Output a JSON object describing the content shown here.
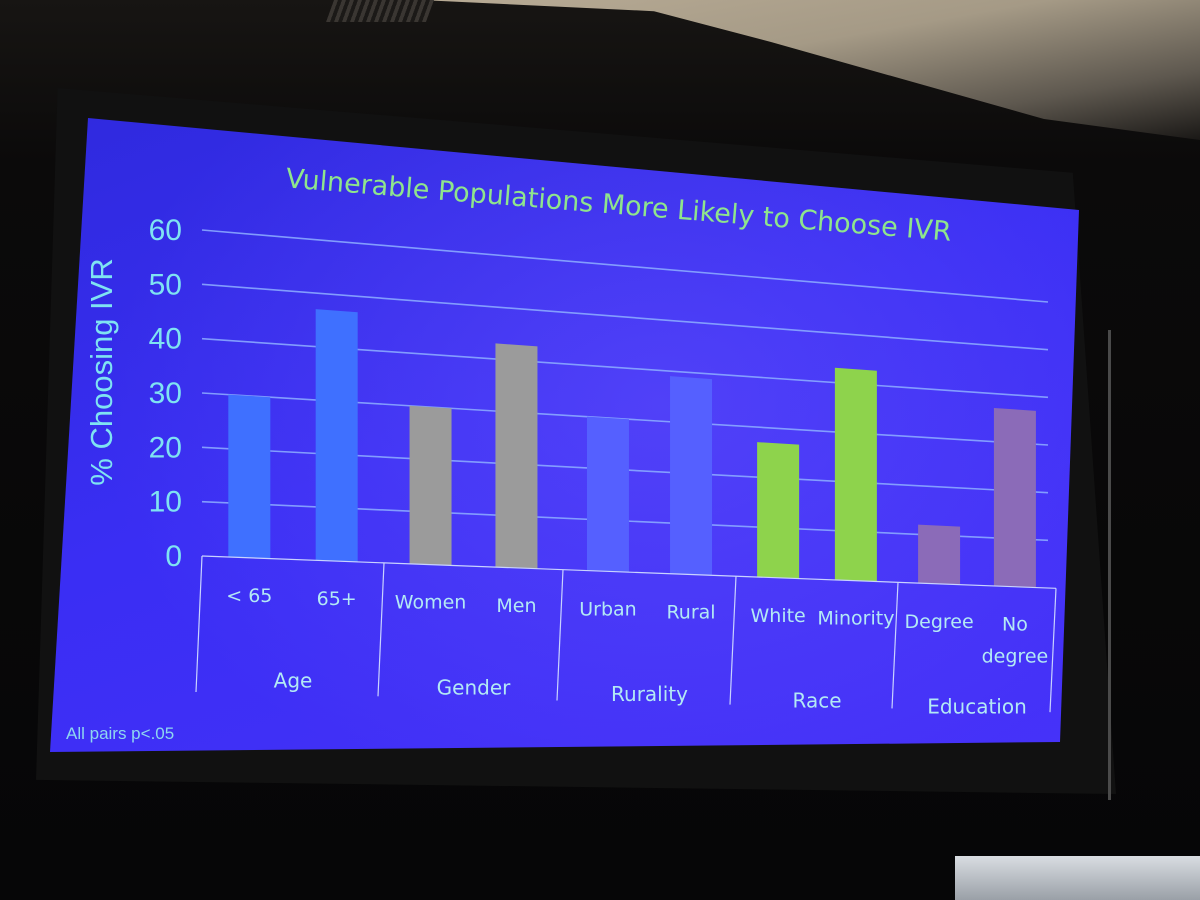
{
  "chart_data": {
    "type": "bar",
    "title": "Vulnerable Populations More Likely to Choose IVR",
    "ylabel": "% Choosing IVR",
    "xlabel": "",
    "ylim": [
      0,
      60
    ],
    "yticks": [
      0,
      10,
      20,
      30,
      40,
      50,
      60
    ],
    "grid": true,
    "legend": "none",
    "groups": [
      {
        "name": "Age",
        "categories": [
          {
            "label": "< 65",
            "value": 30,
            "color": "#3f70ff"
          },
          {
            "label": "65+",
            "value": 47,
            "color": "#3f70ff"
          }
        ]
      },
      {
        "name": "Gender",
        "categories": [
          {
            "label": "Women",
            "value": 30,
            "color": "#9b9b9b"
          },
          {
            "label": "Men",
            "value": 43,
            "color": "#9b9b9b"
          }
        ]
      },
      {
        "name": "Rurality",
        "categories": [
          {
            "label": "Urban",
            "value": 30,
            "color": "#5560ff"
          },
          {
            "label": "Rural",
            "value": 39,
            "color": "#5560ff"
          }
        ]
      },
      {
        "name": "Race",
        "categories": [
          {
            "label": "White",
            "value": 27,
            "color": "#8ed34c"
          },
          {
            "label": "Minority",
            "value": 43,
            "color": "#8ed34c"
          }
        ]
      },
      {
        "name": "Education",
        "categories": [
          {
            "label": "Degree",
            "value": 12,
            "color": "#8b6bb8"
          },
          {
            "label": "No\ndegree",
            "value": 37,
            "color": "#8b6bb8"
          }
        ]
      }
    ],
    "annotations": [
      "All pairs p<.05"
    ]
  }
}
